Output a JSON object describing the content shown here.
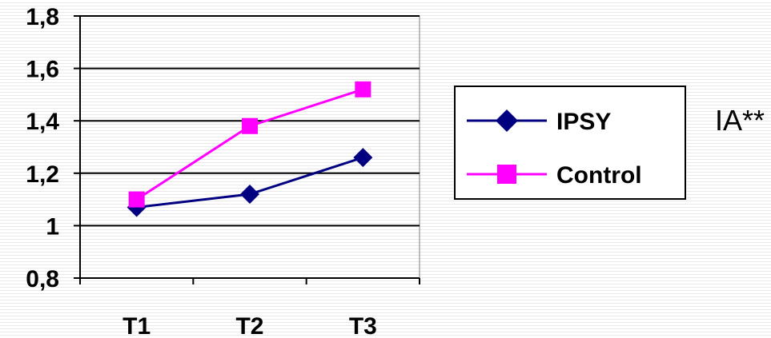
{
  "chart_data": {
    "type": "line",
    "categories": [
      "T1",
      "T2",
      "T3"
    ],
    "series": [
      {
        "name": "IPSY",
        "values": [
          1.07,
          1.12,
          1.26
        ],
        "color": "#000080",
        "marker": "diamond"
      },
      {
        "name": "Control",
        "values": [
          1.1,
          1.38,
          1.52
        ],
        "color": "#ff00ff",
        "marker": "square"
      }
    ],
    "y_ticks": [
      "0,8",
      "1",
      "1,2",
      "1,4",
      "1,6",
      "1,8"
    ],
    "ylim": [
      0.8,
      1.8
    ],
    "grid": "horizontal",
    "legend": "right",
    "annotation": "IA**"
  }
}
